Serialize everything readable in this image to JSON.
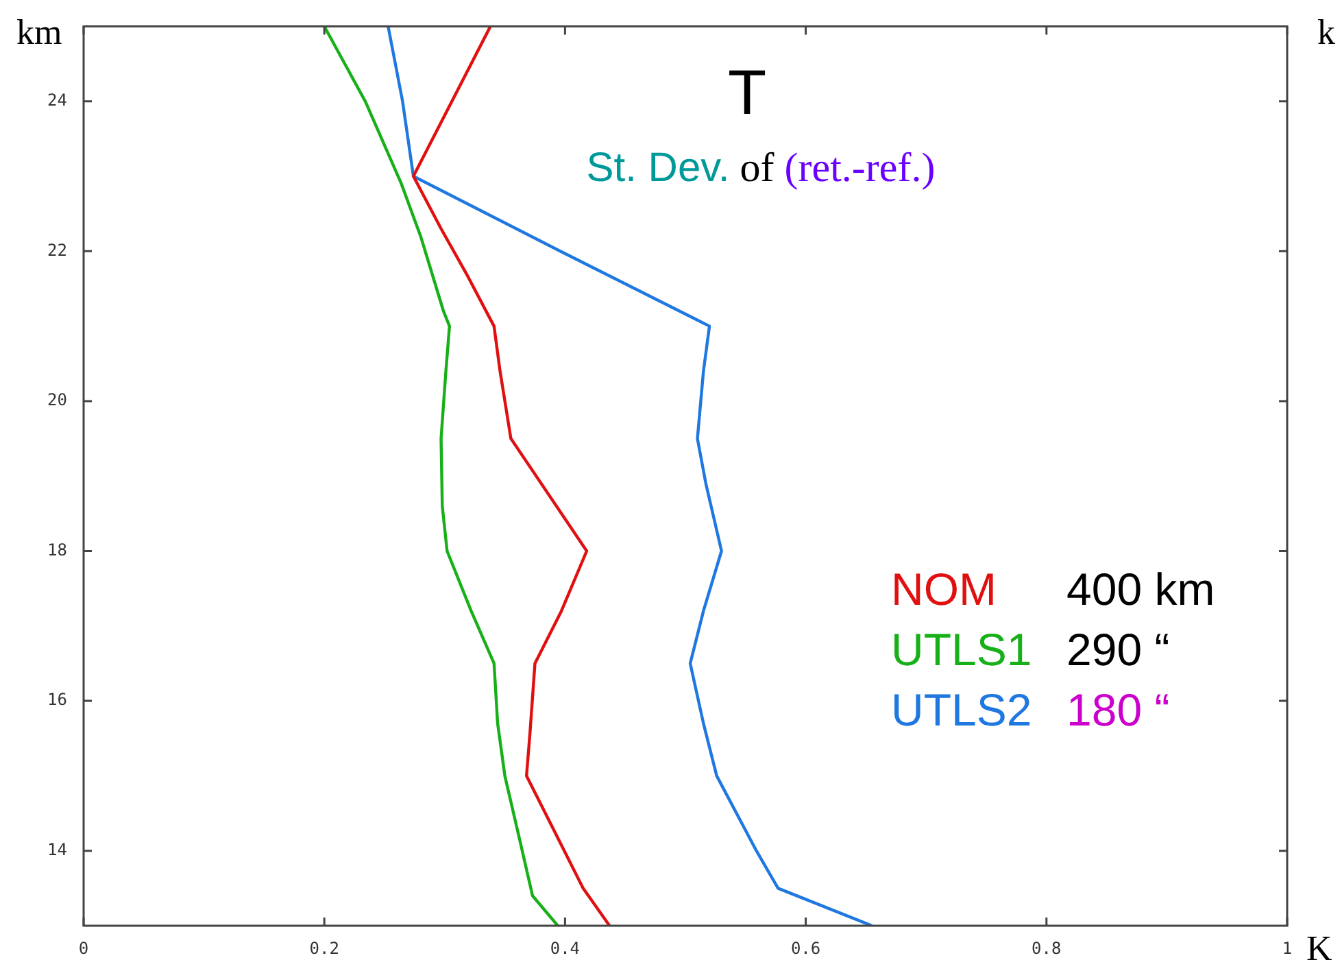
{
  "chart_data": {
    "type": "line",
    "title": "T",
    "subtitle": "St. Dev. of (ret.-ref.)",
    "xlabel": "K",
    "ylabel": "km",
    "y2label": "k",
    "annotations": [
      "400 km",
      "290 “",
      "180 “"
    ],
    "series": [
      {
        "name": "NOM",
        "color": "#e01010",
        "x": [
          0.338,
          0.274,
          0.297,
          0.318,
          0.341,
          0.346,
          0.355,
          0.418,
          0.397,
          0.375,
          0.371,
          0.368,
          0.39,
          0.415,
          0.437
        ],
        "values": [
          25,
          23,
          22.3,
          21.7,
          21,
          20.4,
          19.5,
          18,
          17.2,
          16.5,
          15.6,
          15,
          14.3,
          13.5,
          13
        ]
      },
      {
        "name": "UTLS1",
        "color": "#18b018",
        "x": [
          0.2,
          0.234,
          0.264,
          0.28,
          0.299,
          0.304,
          0.301,
          0.297,
          0.298,
          0.302,
          0.322,
          0.341,
          0.344,
          0.35,
          0.363,
          0.373,
          0.394
        ],
        "values": [
          25,
          24,
          22.9,
          22.2,
          21.2,
          21,
          20.4,
          19.5,
          18.6,
          18,
          17.2,
          16.5,
          15.7,
          15,
          14.1,
          13.4,
          13
        ]
      },
      {
        "name": "UTLS2",
        "color": "#1f78e0",
        "x": [
          0.253,
          0.265,
          0.274,
          0.396,
          0.52,
          0.515,
          0.51,
          0.517,
          0.53,
          0.515,
          0.504,
          0.515,
          0.526,
          0.559,
          0.577,
          0.655
        ],
        "values": [
          25,
          24,
          23,
          22,
          21,
          20.4,
          19.5,
          18.9,
          18,
          17.2,
          16.5,
          15.7,
          15,
          14,
          13.5,
          13
        ]
      }
    ],
    "xlim": [
      0,
      1
    ],
    "xticks": [
      0,
      0.2,
      0.4,
      0.6,
      0.8,
      1
    ],
    "ylim": [
      13,
      25
    ],
    "yticks": [
      14,
      16,
      18,
      20,
      22,
      24
    ],
    "grid": false,
    "legend": "right",
    "marker": "none",
    "line_style": "solid"
  }
}
